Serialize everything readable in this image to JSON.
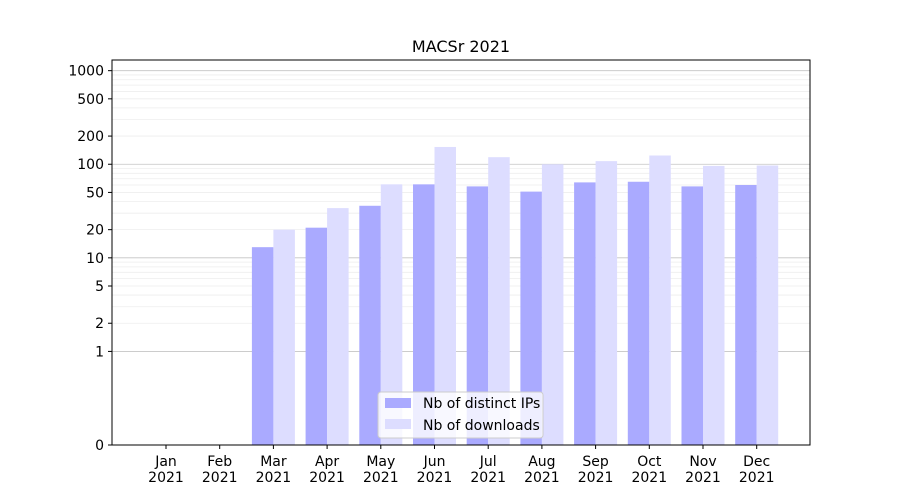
{
  "chart_data": {
    "type": "bar",
    "title": "MACSr 2021",
    "xlabel": "",
    "ylabel": "",
    "y_scale": "symlog",
    "ylim": [
      0,
      1300
    ],
    "y_ticks": [
      0,
      1,
      2,
      5,
      10,
      20,
      50,
      100,
      200,
      500,
      1000
    ],
    "y_tick_labels": [
      "0",
      "1",
      "2",
      "5",
      "10",
      "20",
      "50",
      "100",
      "200",
      "500",
      "1000"
    ],
    "categories": [
      [
        "Jan",
        "2021"
      ],
      [
        "Feb",
        "2021"
      ],
      [
        "Mar",
        "2021"
      ],
      [
        "Apr",
        "2021"
      ],
      [
        "May",
        "2021"
      ],
      [
        "Jun",
        "2021"
      ],
      [
        "Jul",
        "2021"
      ],
      [
        "Aug",
        "2021"
      ],
      [
        "Sep",
        "2021"
      ],
      [
        "Oct",
        "2021"
      ],
      [
        "Nov",
        "2021"
      ],
      [
        "Dec",
        "2021"
      ]
    ],
    "series": [
      {
        "name": "Nb of distinct IPs",
        "color": "#aaaaff",
        "values": [
          0,
          0,
          13,
          21,
          36,
          61,
          58,
          51,
          64,
          65,
          58,
          60
        ]
      },
      {
        "name": "Nb of downloads",
        "color": "#ddddff",
        "values": [
          0,
          0,
          20,
          34,
          61,
          153,
          119,
          100,
          108,
          124,
          96,
          97
        ]
      }
    ],
    "grid": "y",
    "legend_position": "lower center"
  }
}
